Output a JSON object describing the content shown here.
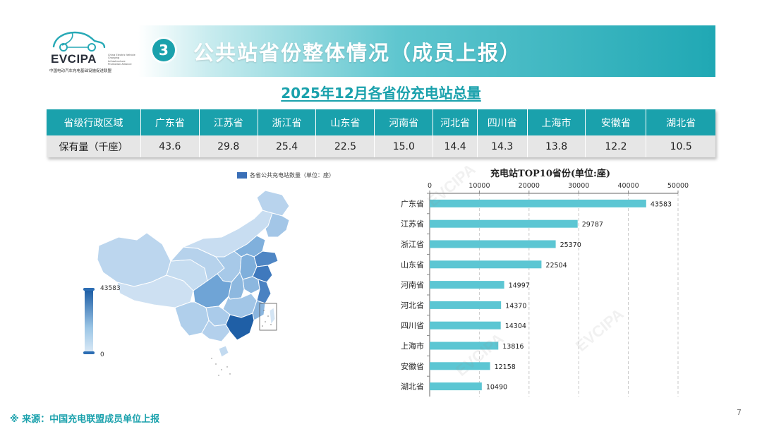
{
  "logo": {
    "name": "EVCIPA",
    "sub_en": "China Electric Vehicle Charging Infrastructure Promotion Alliance",
    "cn": "中国电动汽车充电基础设施促进联盟"
  },
  "header": {
    "section_number": "3",
    "title": "公共站省份整体情况（成员上报）"
  },
  "subtitle": "2025年12月各省份充电站总量",
  "table": {
    "header_label": "省级行政区域",
    "row_label": "保有量（千座）",
    "columns": [
      "广东省",
      "江苏省",
      "浙江省",
      "山东省",
      "河南省",
      "河北省",
      "四川省",
      "上海市",
      "安徽省",
      "湖北省"
    ],
    "values": [
      "43.6",
      "29.8",
      "25.4",
      "22.5",
      "15.0",
      "14.4",
      "14.3",
      "13.8",
      "12.2",
      "10.5"
    ]
  },
  "map": {
    "legend_label": "各省公共充电站数量（单位：座）",
    "legend_color": "#3a6fb7",
    "visual_max": "43583",
    "visual_min": "0"
  },
  "chart_data": {
    "type": "bar",
    "orientation": "horizontal",
    "title": "充电站TOP10省份(单位:座)",
    "categories": [
      "广东省",
      "江苏省",
      "浙江省",
      "山东省",
      "河南省",
      "河北省",
      "四川省",
      "上海市",
      "安徽省",
      "湖北省"
    ],
    "values": [
      43583,
      29787,
      25370,
      22504,
      14997,
      14370,
      14304,
      13816,
      12158,
      10490
    ],
    "xlim": [
      0,
      50000
    ],
    "xticks": [
      "0",
      "10000",
      "20000",
      "30000",
      "40000",
      "50000"
    ],
    "bar_color": "#5cc6d3",
    "grid": true
  },
  "footer": {
    "source": "※  来源：中国充电联盟成员单位上报",
    "page": "7"
  },
  "colors": {
    "accent": "#1aa1ac",
    "table_row": "#e6e6e6"
  },
  "watermark": "EVCIPA"
}
